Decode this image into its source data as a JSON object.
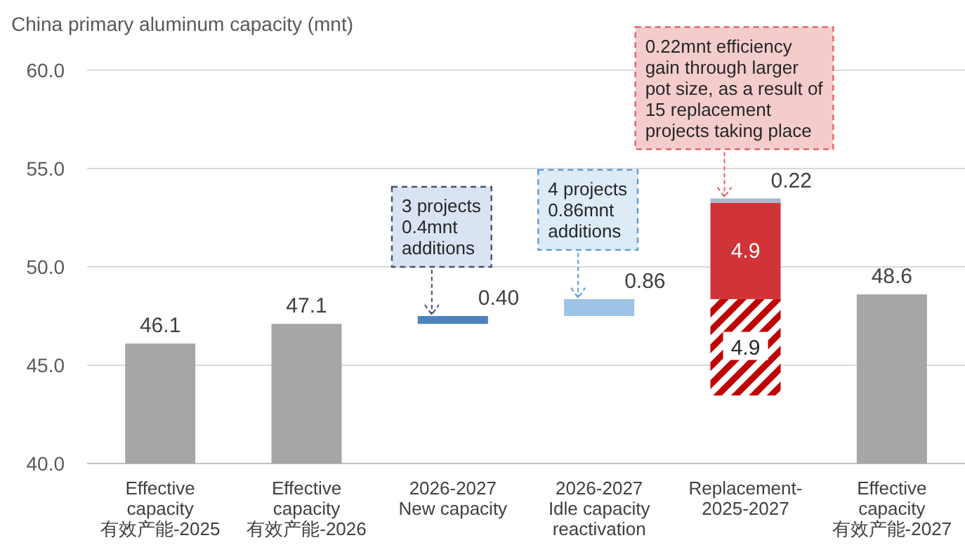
{
  "chart_data": {
    "type": "bar",
    "title": "China primary aluminum capacity (mnt)",
    "categories": [
      "Effective\ncapacity\n有效产能-2025",
      "Effective\ncapacity\n有效产能-2026",
      "2026-2027\nNew capacity",
      "2026-2027\nIdle capacity\nreactivation",
      "Replacement-\n2025-2027",
      "Effective\ncapacity\n有效产能-2027"
    ],
    "ylim": [
      40,
      60
    ],
    "yticks": [
      {
        "value": 40,
        "label": "40.0"
      },
      {
        "value": 45,
        "label": "45.0"
      },
      {
        "value": 50,
        "label": "50.0"
      },
      {
        "value": 55,
        "label": "55.0"
      },
      {
        "value": 60,
        "label": "60.0"
      }
    ],
    "grid": "y",
    "series": [
      {
        "color": "#a6a6a6",
        "values": [
          46.1,
          47.1,
          null,
          null,
          null,
          48.6
        ],
        "value_labels": [
          "46.1",
          "47.1",
          null,
          null,
          null,
          "48.6"
        ]
      },
      {
        "color": "#4f81bd",
        "values": [
          null,
          null,
          0.4,
          null,
          null,
          null
        ],
        "base": [
          null,
          null,
          47.1,
          null,
          null,
          null
        ],
        "value_labels": [
          null,
          null,
          "0.40",
          null,
          null,
          null
        ]
      },
      {
        "color": "#9dc3e6",
        "values": [
          null,
          null,
          null,
          0.86,
          null,
          null
        ],
        "base": [
          null,
          null,
          null,
          47.5,
          null,
          null
        ],
        "value_labels": [
          null,
          null,
          null,
          "0.86",
          null,
          null
        ]
      },
      {
        "color": "#c00000",
        "values": [
          null,
          null,
          null,
          null,
          4.9,
          null
        ],
        "base": [
          null,
          null,
          null,
          null,
          43.46,
          null
        ],
        "value_labels": [
          null,
          null,
          null,
          null,
          "4.9",
          null
        ]
      },
      {
        "color": "#d13438",
        "values": [
          null,
          null,
          null,
          null,
          4.9,
          null
        ],
        "base": [
          null,
          null,
          null,
          null,
          48.36,
          null
        ],
        "value_labels": [
          null,
          null,
          null,
          null,
          "4.9",
          null
        ]
      },
      {
        "color": "#a9b9cc",
        "values": [
          null,
          null,
          null,
          null,
          0.22,
          null
        ],
        "base": [
          null,
          null,
          null,
          null,
          53.26,
          null
        ],
        "value_labels": [
          null,
          null,
          null,
          null,
          "0.22",
          null
        ]
      }
    ],
    "annotations": [
      "3 projects\n0.4mnt\nadditions",
      "4 projects\n0.86mnt\nadditions",
      "0.22mnt efficiency\ngain through larger\npot size, as a result of\n15  replacement\nprojects taking place"
    ]
  }
}
